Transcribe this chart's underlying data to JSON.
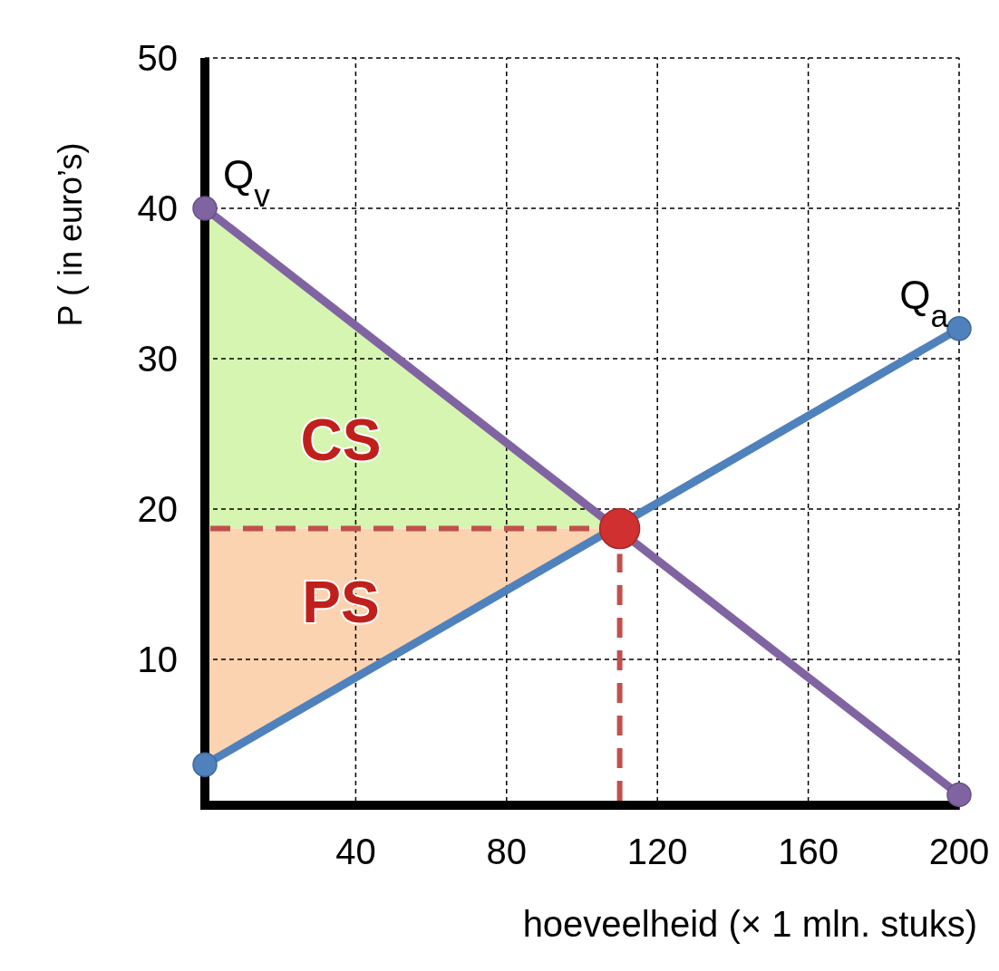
{
  "chart_data": {
    "type": "line",
    "xlabel": "hoeveelheid (× 1 mln. stuks)",
    "ylabel": "P ( in euro’s)",
    "xlim": [
      0,
      200
    ],
    "xticks": [
      40,
      80,
      120,
      160,
      200
    ],
    "ylim": [
      0,
      50
    ],
    "yticks": [
      10,
      20,
      30,
      40,
      50
    ],
    "grid": true,
    "legend": false,
    "series": [
      {
        "name": "Q$_{v}$",
        "color": "#8064a2",
        "x": [
          0,
          200
        ],
        "values": [
          40,
          1
        ],
        "marker": "circle",
        "line_style": "solid"
      },
      {
        "name": "Q$_{a}$",
        "color": "#4f81bd",
        "x": [
          0,
          200
        ],
        "values": [
          3,
          32
        ],
        "marker": "circle",
        "line_style": "solid"
      },
      {
        "type": "scatter",
        "color": "#d03030",
        "x": [
          110
        ],
        "values": [
          18.7
        ],
        "marker": "circle"
      }
    ],
    "ref_lines": [
      {
        "axis": "y",
        "value": 18.7,
        "color": "#c0504d",
        "line_style": "dashed"
      },
      {
        "axis": "x",
        "value": 110,
        "color": "#c0504d",
        "line_style": "dashed"
      }
    ],
    "annotations": [
      "CS",
      "PS"
    ]
  }
}
